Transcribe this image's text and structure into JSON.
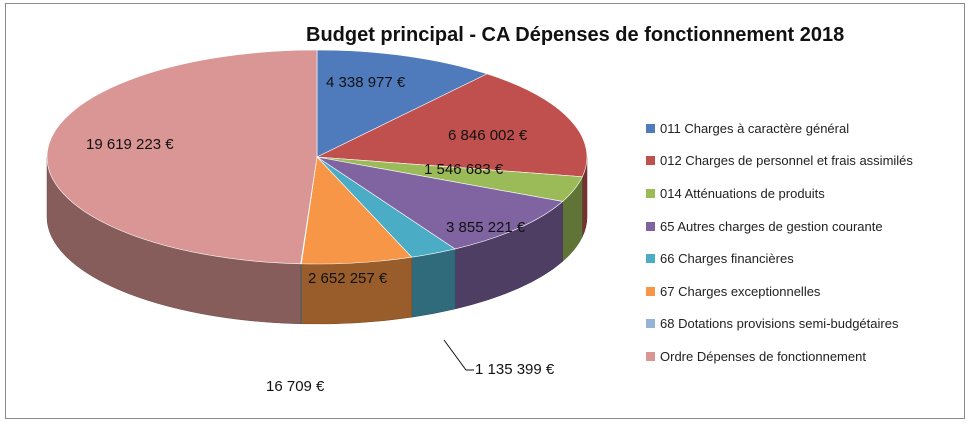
{
  "chart_data": {
    "type": "pie",
    "title": "Budget principal - CA Dépenses de fonctionnement 2018",
    "categories": [
      "011 Charges à caractère général",
      "012 Charges de personnel et frais assimilés",
      "014 Atténuations de produits",
      "65 Autres charges de gestion courante",
      "66 Charges financières",
      "67 Charges exceptionnelles",
      "68 Dotations provisions semi-budgétaires",
      "Ordre Dépenses de fonctionnement"
    ],
    "values": [
      4338977,
      6846002,
      1546683,
      3855221,
      1135399,
      2652257,
      16709,
      19619223
    ],
    "data_labels": [
      "4 338 977 €",
      "6 846 002 €",
      "1 546 683 €",
      "3 855 221 €",
      "1 135 399 €",
      "2 652 257 €",
      "16 709 €",
      "19 619 223 €"
    ],
    "colors": [
      "#4f7bbd",
      "#c0504d",
      "#9bbb59",
      "#8064a2",
      "#4bacc6",
      "#f79646",
      "#95b3d7",
      "#d99694"
    ],
    "legend_position": "right",
    "three_d": true
  }
}
